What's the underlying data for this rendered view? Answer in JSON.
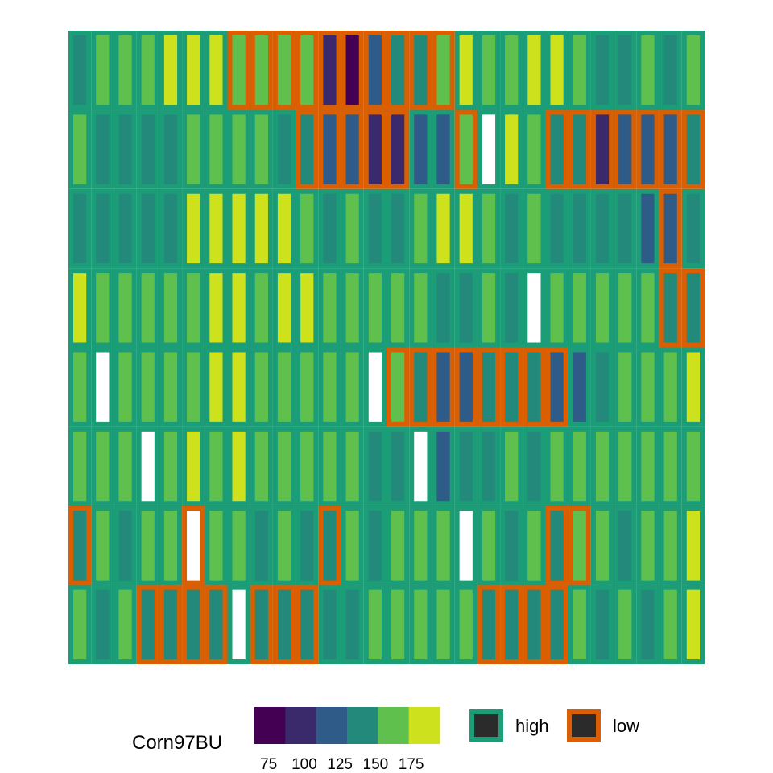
{
  "chart_data": {
    "type": "heatmap",
    "title": "",
    "xlabel": "",
    "ylabel": "",
    "n_rows": 8,
    "n_cols": 28,
    "fill_variable": "Corn97BU",
    "fill_ticks": [
      75,
      100,
      125,
      150,
      175
    ],
    "fill_range": [
      65,
      195
    ],
    "fill_palette": [
      "#440154",
      "#3b2a6b",
      "#2f5b88",
      "#23897a",
      "#5fc04e",
      "#cde11d"
    ],
    "outline_legend": {
      "title": "",
      "items": [
        {
          "key": "high",
          "label": "high",
          "color": "#1b9e77"
        },
        {
          "key": "low",
          "label": "low",
          "color": "#d95f02"
        }
      ]
    },
    "rows": [
      {
        "values": [
          140,
          160,
          160,
          160,
          185,
          185,
          185,
          160,
          160,
          160,
          160,
          90,
          75,
          115,
          140,
          140,
          160,
          185,
          160,
          160,
          185,
          185,
          160,
          140,
          140,
          160,
          140,
          160
        ],
        "groups": [
          "h",
          "h",
          "h",
          "h",
          "h",
          "h",
          "h",
          "l",
          "l",
          "l",
          "l",
          "l",
          "l",
          "l",
          "l",
          "l",
          "l",
          "h",
          "h",
          "h",
          "h",
          "h",
          "h",
          "h",
          "h",
          "h",
          "h",
          "h"
        ]
      },
      {
        "values": [
          160,
          140,
          140,
          140,
          140,
          160,
          160,
          160,
          160,
          140,
          140,
          115,
          115,
          90,
          90,
          115,
          115,
          160,
          null,
          185,
          160,
          140,
          140,
          90,
          115,
          115,
          115,
          140
        ],
        "groups": [
          "h",
          "h",
          "h",
          "h",
          "h",
          "h",
          "h",
          "h",
          "h",
          "h",
          "l",
          "l",
          "l",
          "l",
          "l",
          "h",
          "h",
          "l",
          "h",
          "h",
          "h",
          "l",
          "l",
          "l",
          "l",
          "l",
          "l",
          "l"
        ]
      },
      {
        "values": [
          140,
          140,
          140,
          140,
          140,
          185,
          185,
          185,
          185,
          185,
          160,
          140,
          160,
          140,
          140,
          160,
          185,
          185,
          160,
          140,
          160,
          140,
          140,
          140,
          140,
          115,
          115,
          140
        ],
        "groups": [
          "h",
          "h",
          "h",
          "h",
          "h",
          "h",
          "h",
          "h",
          "h",
          "h",
          "h",
          "h",
          "h",
          "h",
          "h",
          "h",
          "h",
          "h",
          "h",
          "h",
          "h",
          "h",
          "h",
          "h",
          "h",
          "h",
          "l",
          "h"
        ]
      },
      {
        "values": [
          185,
          160,
          160,
          160,
          160,
          160,
          185,
          185,
          160,
          185,
          185,
          160,
          160,
          160,
          160,
          160,
          140,
          140,
          160,
          140,
          null,
          160,
          160,
          160,
          160,
          160,
          140,
          140
        ],
        "groups": [
          "h",
          "h",
          "h",
          "h",
          "h",
          "h",
          "h",
          "h",
          "h",
          "h",
          "h",
          "h",
          "h",
          "h",
          "h",
          "h",
          "h",
          "h",
          "h",
          "h",
          "h",
          "h",
          "h",
          "h",
          "h",
          "h",
          "l",
          "l"
        ]
      },
      {
        "values": [
          160,
          null,
          160,
          160,
          160,
          160,
          185,
          185,
          160,
          160,
          160,
          160,
          160,
          null,
          160,
          140,
          115,
          115,
          140,
          140,
          140,
          115,
          115,
          140,
          160,
          160,
          160,
          185
        ],
        "groups": [
          "h",
          "h",
          "h",
          "h",
          "h",
          "h",
          "h",
          "h",
          "h",
          "h",
          "h",
          "h",
          "h",
          "h",
          "l",
          "l",
          "l",
          "l",
          "l",
          "l",
          "l",
          "l",
          "h",
          "h",
          "h",
          "h",
          "h",
          "h"
        ]
      },
      {
        "values": [
          160,
          160,
          160,
          null,
          160,
          185,
          160,
          185,
          160,
          160,
          160,
          160,
          160,
          140,
          140,
          null,
          115,
          140,
          140,
          160,
          140,
          160,
          160,
          160,
          160,
          160,
          160,
          160
        ],
        "groups": [
          "h",
          "h",
          "h",
          "h",
          "h",
          "h",
          "h",
          "h",
          "h",
          "h",
          "h",
          "h",
          "h",
          "h",
          "h",
          "h",
          "h",
          "h",
          "h",
          "h",
          "h",
          "h",
          "h",
          "h",
          "h",
          "h",
          "h",
          "h"
        ]
      },
      {
        "values": [
          140,
          160,
          140,
          160,
          160,
          null,
          160,
          160,
          140,
          160,
          140,
          140,
          160,
          140,
          160,
          160,
          160,
          null,
          160,
          140,
          160,
          140,
          160,
          160,
          140,
          160,
          160,
          185
        ],
        "groups": [
          "l",
          "h",
          "h",
          "h",
          "h",
          "l",
          "h",
          "h",
          "h",
          "h",
          "h",
          "l",
          "h",
          "h",
          "h",
          "h",
          "h",
          "h",
          "h",
          "h",
          "h",
          "l",
          "l",
          "h",
          "h",
          "h",
          "h",
          "h"
        ]
      },
      {
        "values": [
          160,
          140,
          160,
          140,
          140,
          140,
          140,
          null,
          140,
          140,
          140,
          140,
          140,
          160,
          160,
          160,
          160,
          160,
          140,
          140,
          140,
          140,
          160,
          140,
          160,
          140,
          160,
          185
        ],
        "groups": [
          "h",
          "h",
          "h",
          "l",
          "l",
          "l",
          "l",
          "h",
          "l",
          "l",
          "l",
          "h",
          "h",
          "h",
          "h",
          "h",
          "h",
          "h",
          "l",
          "l",
          "l",
          "l",
          "h",
          "h",
          "h",
          "h",
          "h",
          "h"
        ]
      }
    ]
  }
}
